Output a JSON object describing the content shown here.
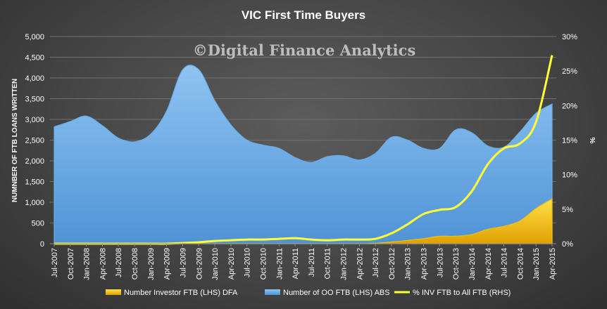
{
  "chart_data": {
    "type": "area",
    "title": "VIC First Time Buyers",
    "watermark": "©Digital Finance Analytics",
    "ylabel": "NUMNBER OF FTB LOANS WRITTEN",
    "y2label": "%",
    "ylim": [
      0,
      5000
    ],
    "y2lim": [
      0,
      30
    ],
    "yticks": [
      "0",
      "500",
      "1,000",
      "1,500",
      "2,000",
      "2,500",
      "3,000",
      "3,500",
      "4,000",
      "4,500",
      "5,000"
    ],
    "y2ticks": [
      "0%",
      "5%",
      "10%",
      "15%",
      "20%",
      "25%",
      "30%"
    ],
    "grid": true,
    "legend_position": "bottom",
    "x": [
      "Jul-2007",
      "Oct-2007",
      "Jan-2008",
      "Apr-2008",
      "Jul-2008",
      "Oct-2008",
      "Jan-2009",
      "Apr-2009",
      "Jul-2009",
      "Oct-2009",
      "Jan-2010",
      "Apr-2010",
      "Jul-2010",
      "Oct-2010",
      "Jan-2011",
      "Apr-2011",
      "Jul-2011",
      "Oct-2011",
      "Jan-2012",
      "Apr-2012",
      "Jul-2012",
      "Oct-2012",
      "Jan-2013",
      "Apr-2013",
      "Jul-2013",
      "Oct-2013",
      "Jan-2014",
      "Apr-2014",
      "Jul-2014",
      "Oct-2014",
      "Jan-2015",
      "Apr-2015"
    ],
    "series": [
      {
        "name": "Number Investor FTB (LHS) DFA",
        "kind": "area",
        "axis": "left",
        "color": "#f5c000",
        "values": [
          0,
          0,
          0,
          0,
          0,
          0,
          0,
          0,
          0,
          0,
          0,
          0,
          0,
          0,
          0,
          0,
          0,
          0,
          0,
          0,
          10,
          40,
          80,
          120,
          180,
          180,
          220,
          350,
          420,
          550,
          850,
          1080
        ]
      },
      {
        "name": "Number of OO FTB (LHS) ABS",
        "kind": "area",
        "axis": "left",
        "color": "#6aaee8",
        "values": [
          2820,
          2950,
          3080,
          2850,
          2550,
          2460,
          2640,
          3200,
          4200,
          4200,
          3450,
          2870,
          2500,
          2380,
          2300,
          2080,
          1960,
          2100,
          2120,
          2020,
          2180,
          2570,
          2500,
          2300,
          2300,
          2750,
          2680,
          2360,
          2330,
          2700,
          3150,
          3370
        ]
      },
      {
        "name": "% INV FTB to All FTB (RHS)",
        "kind": "line",
        "axis": "right",
        "color": "#ffff33",
        "values": [
          0,
          0,
          0,
          0,
          0,
          0,
          0,
          0,
          0.1,
          0.2,
          0.4,
          0.5,
          0.6,
          0.6,
          0.7,
          0.8,
          0.6,
          0.5,
          0.6,
          0.6,
          0.7,
          1.5,
          2.8,
          4.3,
          4.9,
          5.3,
          7.6,
          11.5,
          13.8,
          14.5,
          17.6,
          27.3
        ]
      }
    ]
  }
}
